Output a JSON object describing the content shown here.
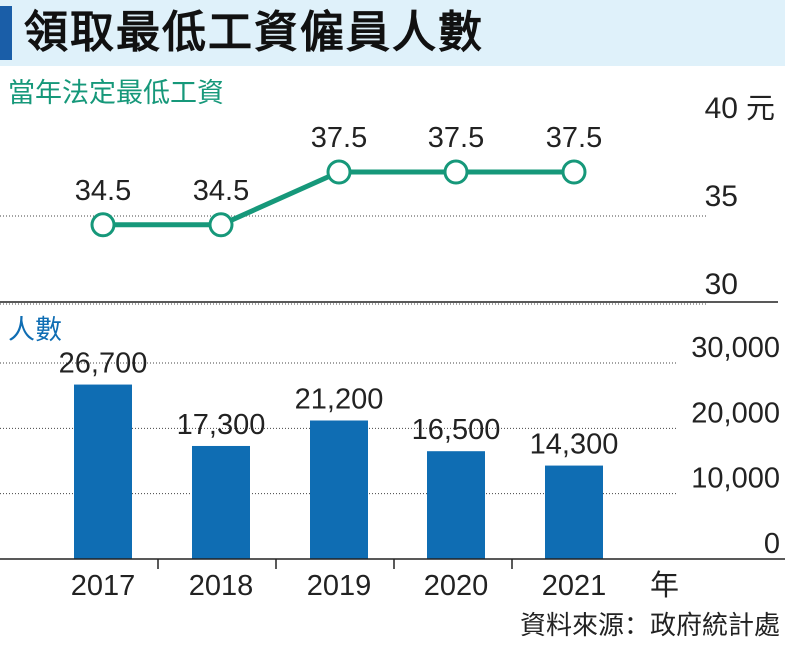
{
  "title": "領取最低工資僱員人數",
  "source": "資料來源：政府統計處",
  "colors": {
    "wage": "#16987a",
    "count": "#0f6db3",
    "header": "#1a5ea8",
    "title_bg": "#dff1fa"
  },
  "chart_data": [
    {
      "type": "line",
      "title": "當年法定最低工資",
      "unit": "元",
      "x": [
        "2017",
        "2018",
        "2019",
        "2020",
        "2021"
      ],
      "values": [
        34.5,
        34.5,
        37.5,
        37.5,
        37.5
      ],
      "data_labels": [
        "34.5",
        "34.5",
        "37.5",
        "37.5",
        "37.5"
      ],
      "ylim": [
        30,
        40
      ],
      "yticks": [
        30,
        35,
        40
      ],
      "ytick_labels": [
        "30",
        "35",
        "40"
      ]
    },
    {
      "type": "bar",
      "title": "人數",
      "categories": [
        "2017",
        "2018",
        "2019",
        "2020",
        "2021"
      ],
      "xlabel": "年",
      "values": [
        26700,
        17300,
        21200,
        16500,
        14300
      ],
      "data_labels": [
        "26,700",
        "17,300",
        "21,200",
        "16,500",
        "14,300"
      ],
      "ylim": [
        0,
        30000
      ],
      "yticks": [
        0,
        10000,
        20000,
        30000
      ],
      "ytick_labels": [
        "0",
        "10,000",
        "20,000",
        "30,000"
      ]
    }
  ]
}
